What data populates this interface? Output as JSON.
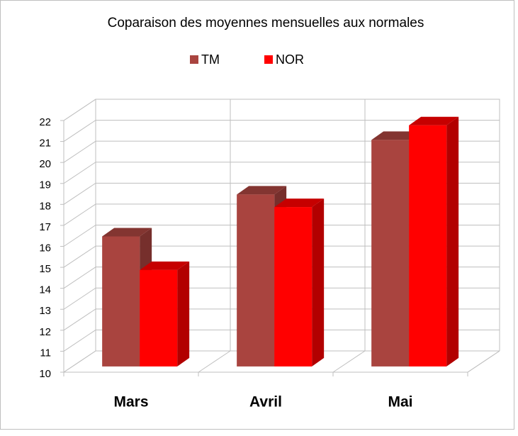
{
  "chart_data": {
    "type": "bar3d",
    "title": "Coparaison des moyennes mensuelles aux normales",
    "categories": [
      "Mars",
      "Avril",
      "Mai"
    ],
    "series": [
      {
        "name": "TM",
        "color": "#a9443f",
        "values": [
          16.2,
          18.2,
          20.8
        ]
      },
      {
        "name": "NOR",
        "color": "#ff0000",
        "values": [
          14.6,
          17.6,
          21.5
        ]
      }
    ],
    "ylim": [
      10,
      22
    ],
    "yticks": [
      10,
      11,
      12,
      13,
      14,
      15,
      16,
      17,
      18,
      19,
      20,
      21,
      22
    ],
    "grid": true,
    "legend": "top"
  }
}
